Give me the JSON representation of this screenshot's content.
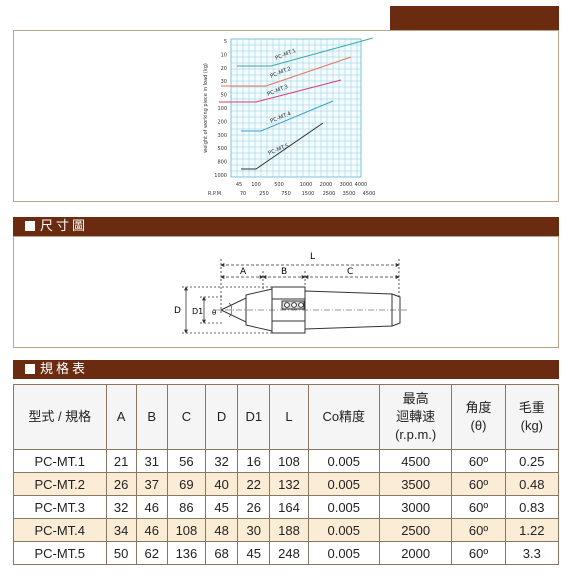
{
  "colors": {
    "brand": "#6a2b10",
    "panel_border": "#b9a58c",
    "alt_row": "#fbecd5",
    "grid": "#8fd0e0"
  },
  "chart": {
    "y_ticks": [
      "5",
      "10",
      "20",
      "30",
      "50",
      "100",
      "200",
      "300",
      "500",
      "800",
      "1000"
    ],
    "y_label": "weight of working piece in load (kg)",
    "x_rows": [
      {
        "label": "",
        "ticks": [
          "45",
          "100",
          "500",
          "1000",
          "2000",
          "3000",
          "4000"
        ]
      },
      {
        "label": "R.P.M",
        "ticks": [
          "70",
          "250",
          "750",
          "1500",
          "2500",
          "3500",
          "4500"
        ]
      }
    ],
    "line_labels": [
      "PC-MT.1",
      "PC-MT.2",
      "PC-MT.3",
      "PC-MT.4",
      "PC-MT.5"
    ],
    "line_colors": [
      "#3aa9a9",
      "#e8735a",
      "#d03f7a",
      "#3aa0c8",
      "#333333"
    ]
  },
  "sections": {
    "dimension_title": "尺寸圖",
    "spec_title": "規格表"
  },
  "diagram": {
    "labels": {
      "L": "L",
      "A": "A",
      "B": "B",
      "C": "C",
      "D": "D",
      "D1": "D1",
      "angle": "θ"
    }
  },
  "spec_table": {
    "headers": [
      {
        "lines": [
          "型式 / 規格"
        ]
      },
      {
        "lines": [
          "A"
        ]
      },
      {
        "lines": [
          "B"
        ]
      },
      {
        "lines": [
          "C"
        ]
      },
      {
        "lines": [
          "D"
        ]
      },
      {
        "lines": [
          "D1"
        ]
      },
      {
        "lines": [
          "L"
        ]
      },
      {
        "lines": [
          "Co精度"
        ]
      },
      {
        "lines": [
          "最高",
          "迴轉速",
          "(r.p.m.)"
        ]
      },
      {
        "lines": [
          "角度",
          "(θ)"
        ]
      },
      {
        "lines": [
          "毛重",
          "(kg)"
        ]
      }
    ],
    "rows": [
      [
        "PC-MT.1",
        "21",
        "31",
        "56",
        "32",
        "16",
        "108",
        "0.005",
        "4500",
        "60º",
        "0.25"
      ],
      [
        "PC-MT.2",
        "26",
        "37",
        "69",
        "40",
        "22",
        "132",
        "0.005",
        "3500",
        "60º",
        "0.48"
      ],
      [
        "PC-MT.3",
        "32",
        "46",
        "86",
        "45",
        "26",
        "164",
        "0.005",
        "3000",
        "60º",
        "0.83"
      ],
      [
        "PC-MT.4",
        "34",
        "46",
        "108",
        "48",
        "30",
        "188",
        "0.005",
        "2500",
        "60º",
        "1.22"
      ],
      [
        "PC-MT.5",
        "50",
        "62",
        "136",
        "68",
        "45",
        "248",
        "0.005",
        "2000",
        "60º",
        "3.3"
      ]
    ]
  }
}
